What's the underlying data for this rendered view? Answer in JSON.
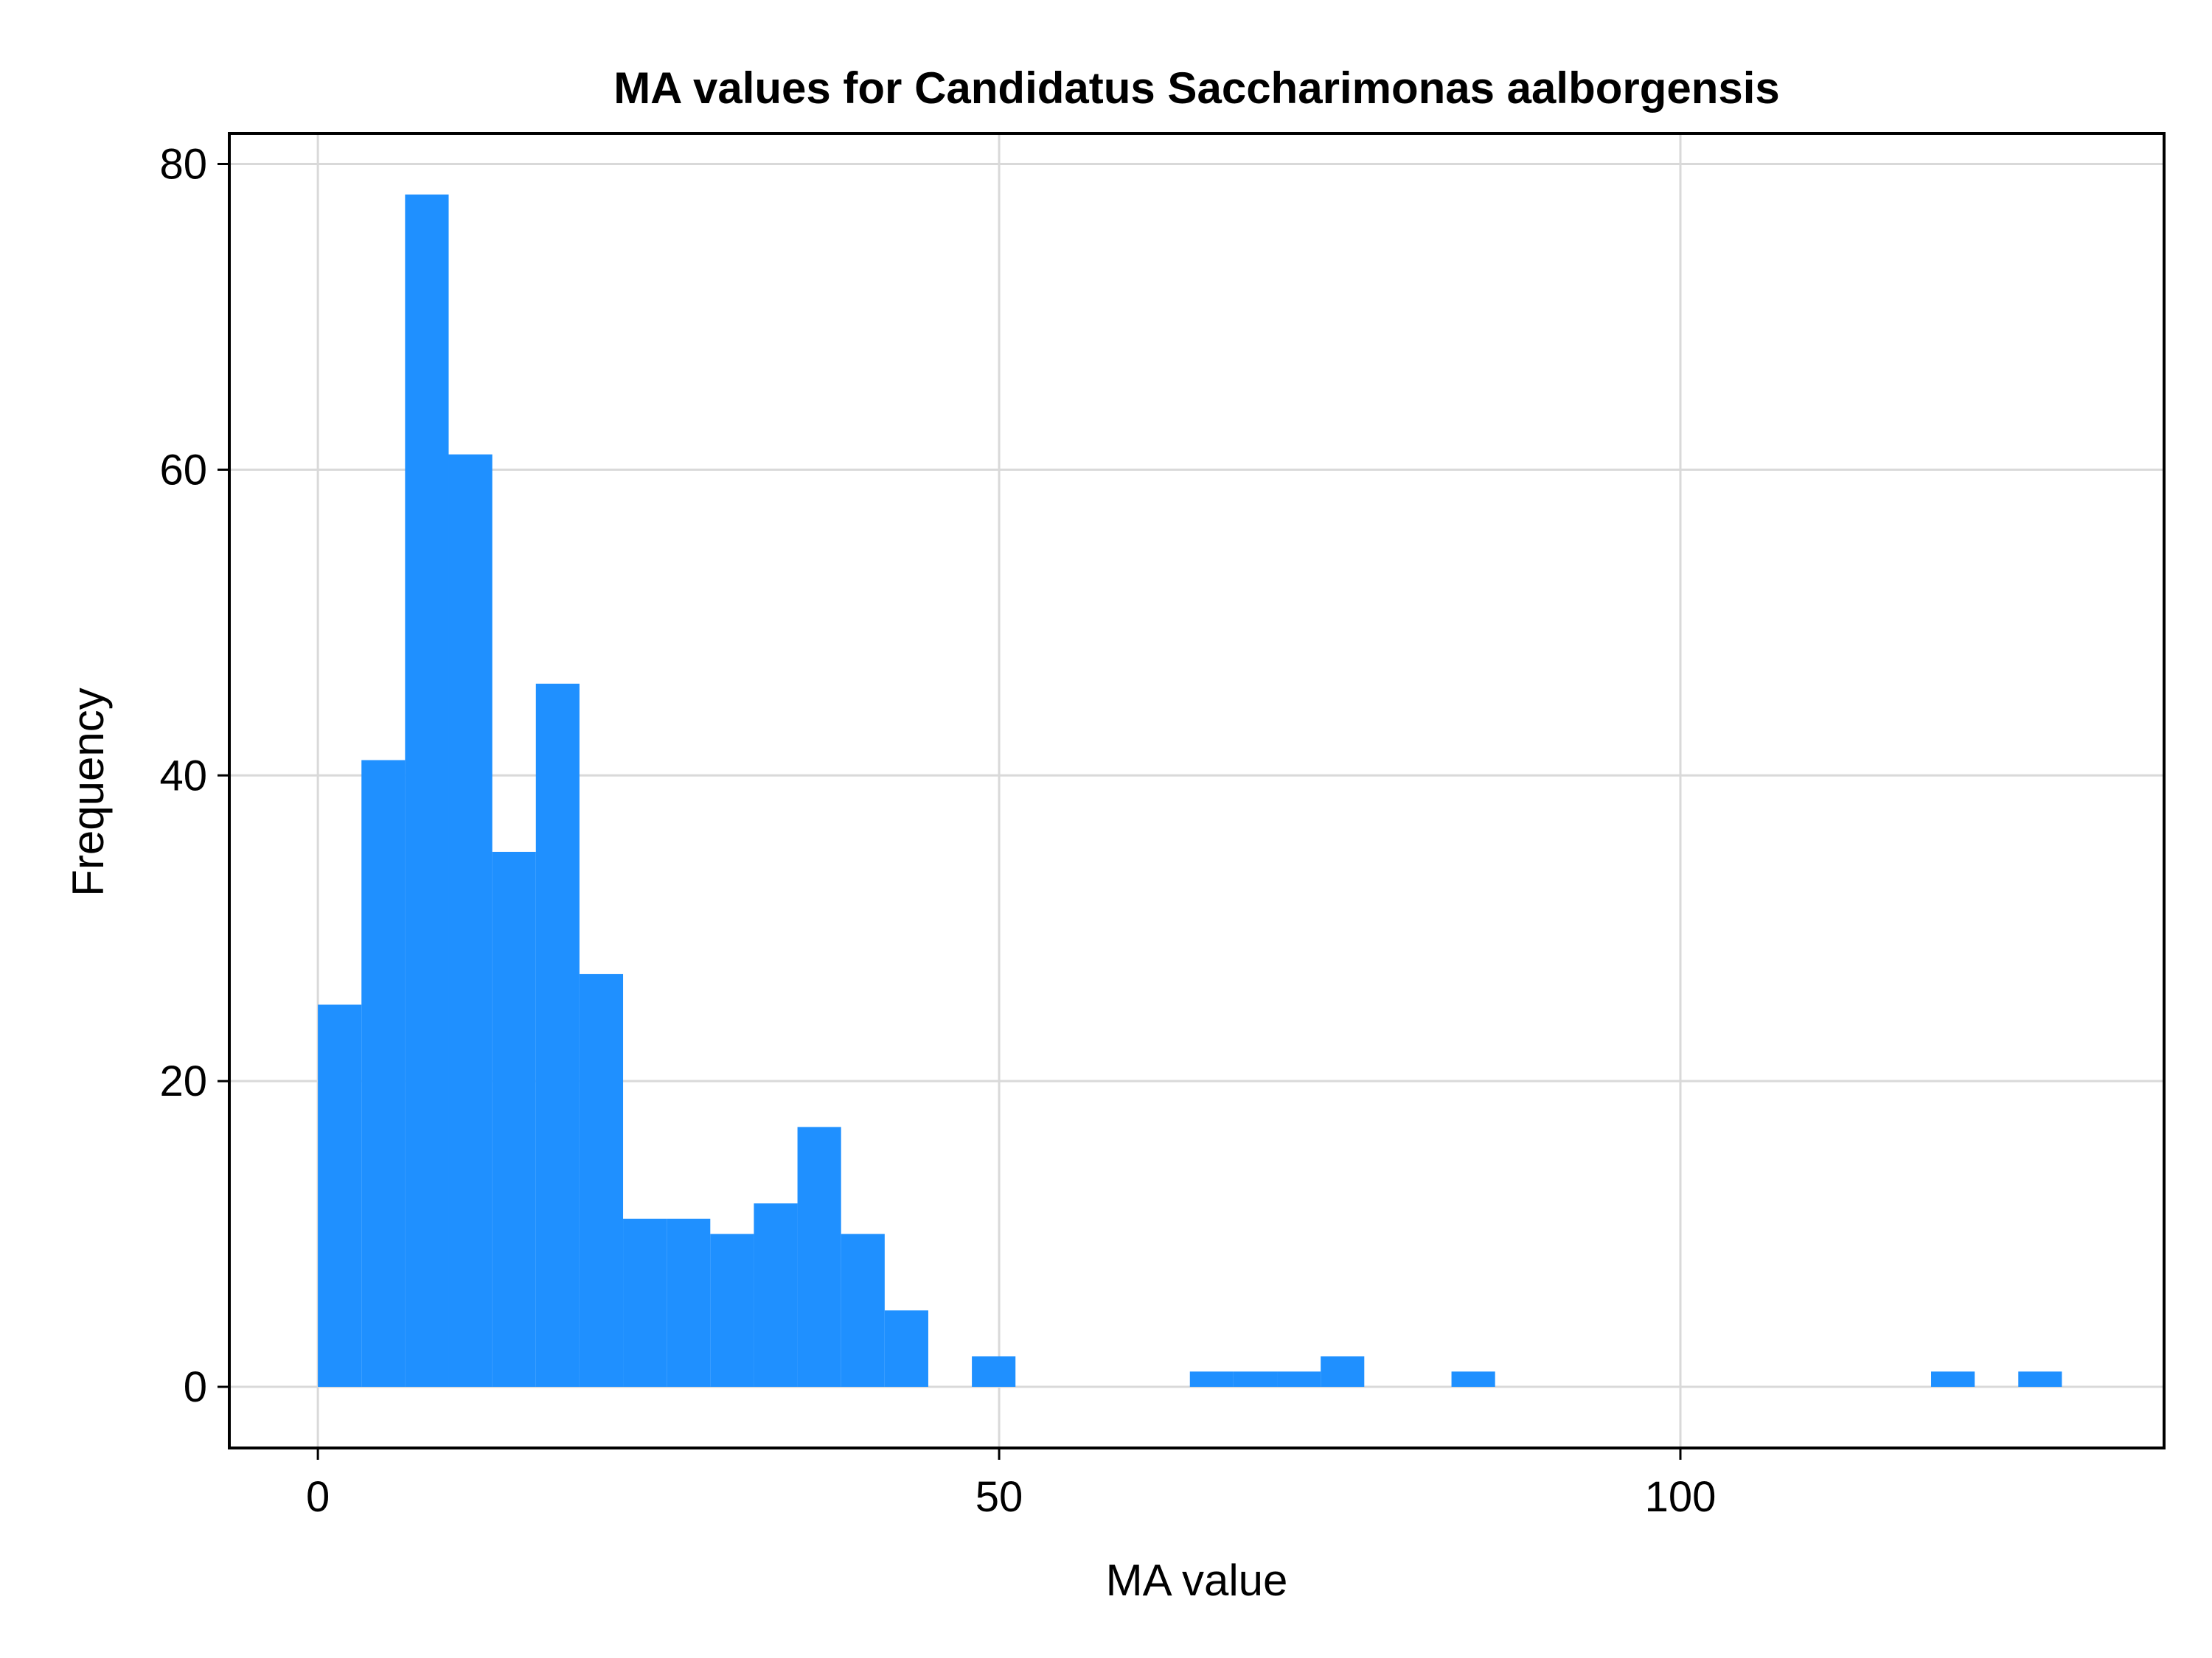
{
  "chart_data": {
    "type": "bar",
    "title": "MA values for Candidatus Saccharimonas aalborgensis",
    "xlabel": "MA value",
    "ylabel": "Frequency",
    "xlim": [
      -6.5,
      135.5
    ],
    "ylim": [
      -4,
      82
    ],
    "xticks": [
      0,
      50,
      100
    ],
    "yticks": [
      0,
      20,
      40,
      60,
      80
    ],
    "grid": true,
    "bin_width": 3.2,
    "bins": [
      {
        "start": 0.0,
        "end": 3.2,
        "count": 25
      },
      {
        "start": 3.2,
        "end": 6.4,
        "count": 41
      },
      {
        "start": 6.4,
        "end": 9.6,
        "count": 78
      },
      {
        "start": 9.6,
        "end": 12.8,
        "count": 61
      },
      {
        "start": 12.8,
        "end": 16.0,
        "count": 35
      },
      {
        "start": 16.0,
        "end": 19.2,
        "count": 46
      },
      {
        "start": 19.2,
        "end": 22.4,
        "count": 27
      },
      {
        "start": 22.4,
        "end": 25.6,
        "count": 11
      },
      {
        "start": 25.6,
        "end": 28.8,
        "count": 11
      },
      {
        "start": 28.8,
        "end": 32.0,
        "count": 10
      },
      {
        "start": 32.0,
        "end": 35.2,
        "count": 12
      },
      {
        "start": 35.2,
        "end": 38.4,
        "count": 17
      },
      {
        "start": 38.4,
        "end": 41.6,
        "count": 10
      },
      {
        "start": 41.6,
        "end": 44.8,
        "count": 5
      },
      {
        "start": 48.0,
        "end": 51.2,
        "count": 2
      },
      {
        "start": 64.0,
        "end": 67.2,
        "count": 1
      },
      {
        "start": 67.2,
        "end": 70.4,
        "count": 1
      },
      {
        "start": 70.4,
        "end": 73.6,
        "count": 1
      },
      {
        "start": 73.6,
        "end": 76.8,
        "count": 2
      },
      {
        "start": 83.2,
        "end": 86.4,
        "count": 1
      },
      {
        "start": 118.4,
        "end": 121.6,
        "count": 1
      },
      {
        "start": 124.8,
        "end": 128.0,
        "count": 1
      }
    ],
    "colors": {
      "bar": "#1f90ff",
      "grid": "#d9d9d9",
      "frame": "#000000"
    }
  }
}
